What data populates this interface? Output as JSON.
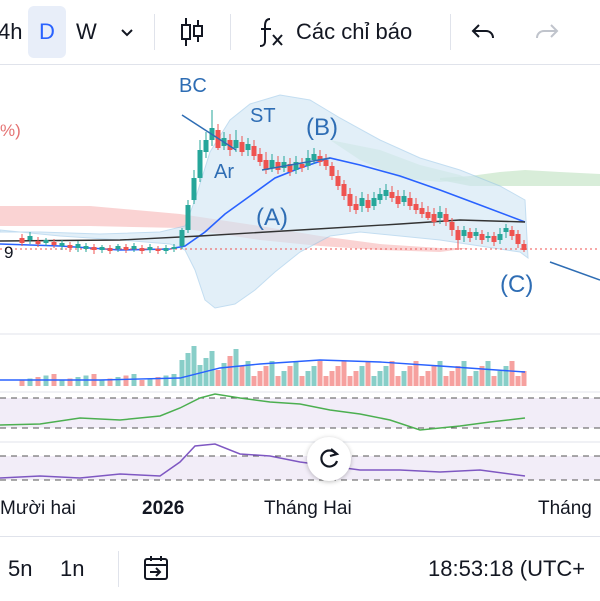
{
  "toolbar": {
    "interval_4h": "4h",
    "interval_d": "D",
    "interval_w": "W",
    "indicators_label": "Các chỉ báo",
    "icons": [
      "chevron-down-icon",
      "candles-icon",
      "fx-icon",
      "undo-icon",
      "redo-icon"
    ]
  },
  "annotations": {
    "bc": "BC",
    "st": "ST",
    "b": "(B)",
    "ar": "Ar",
    "a": "(A)",
    "c": "(C)"
  },
  "price_axis": {
    "pct": "%)",
    "nine": "9"
  },
  "time_axis": {
    "labels": [
      "Mười hai",
      "2026",
      "Tháng Hai",
      "Tháng"
    ]
  },
  "bottom_bar": {
    "range_5n": "5n",
    "range_1n": "1n",
    "clock": "18:53:18 (UTC+"
  },
  "colors": {
    "up": "#26a69a",
    "down": "#ef5350",
    "annotation": "#2e6db4",
    "rsi_line": "#4caf50",
    "osc_line": "#7e57c2"
  }
}
